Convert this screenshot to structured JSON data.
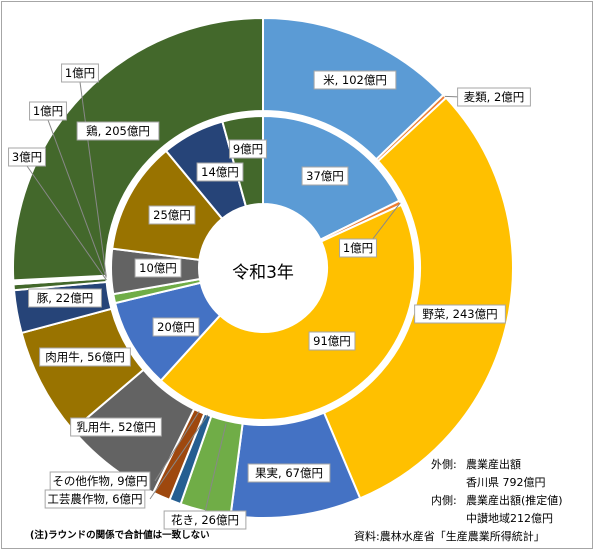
{
  "chart_data": {
    "type": "donut",
    "center_label": "令和3年",
    "series": [
      {
        "ring": "outer",
        "items": [
          {
            "label": "米, 102億円",
            "value": 102,
            "color": "#5b9bd5"
          },
          {
            "label": "麦類, 2億円",
            "value": 2,
            "color": "#ed7d31"
          },
          {
            "label": "野菜, 243億円",
            "value": 243,
            "color": "#ffc000"
          },
          {
            "label": "果実, 67億円",
            "value": 67,
            "color": "#4472c4"
          },
          {
            "label": "花き, 26億円",
            "value": 26,
            "color": "#70ad47"
          },
          {
            "label": "工芸農作物, 6億円",
            "value": 6,
            "color": "#255e91"
          },
          {
            "label": "その他作物, 9億円",
            "value": 9,
            "color": "#9e480e"
          },
          {
            "label": "乳用牛, 52億円",
            "value": 52,
            "color": "#636363"
          },
          {
            "label": "肉用牛, 56億円",
            "value": 56,
            "color": "#997300"
          },
          {
            "label": "豚, 22億円",
            "value": 22,
            "color": "#264478"
          },
          {
            "label": "",
            "value": 3,
            "color": "#43682b"
          },
          {
            "label": "",
            "value": 1,
            "color": "#7cafdd"
          },
          {
            "label": "",
            "value": 1,
            "color": "#f1975a"
          },
          {
            "label": "鶏, 205億円",
            "value": 205,
            "color": "#43682b"
          }
        ]
      },
      {
        "ring": "inner",
        "items": [
          {
            "label": "37億円",
            "value": 37,
            "color": "#5b9bd5"
          },
          {
            "label": "1億円",
            "value": 1,
            "color": "#ed7d31"
          },
          {
            "label": "91億円",
            "value": 91,
            "color": "#ffc000"
          },
          {
            "label": "20億円",
            "value": 20,
            "color": "#4472c4"
          },
          {
            "label": "",
            "value": 2,
            "color": "#70ad47"
          },
          {
            "label": "10億円",
            "value": 10,
            "color": "#636363"
          },
          {
            "label": "25億円",
            "value": 25,
            "color": "#997300"
          },
          {
            "label": "14億円",
            "value": 14,
            "color": "#264478"
          },
          {
            "label": "9億円",
            "value": 9,
            "color": "#43682b"
          }
        ]
      }
    ],
    "extra_labels": [
      "1億円",
      "1億円",
      "3億円"
    ]
  },
  "notes": {
    "outer_key": "外側:",
    "outer_title": "農業産出額",
    "outer_value": "香川県 792億円",
    "inner_key": "内側:",
    "inner_title": "農業産出額(推定値)",
    "inner_value": "中讃地域212億円",
    "source": "資料:農林水産省「生産農業所得統計」",
    "footnote": "(注)ラウンドの関係で合計値は一致しない"
  }
}
